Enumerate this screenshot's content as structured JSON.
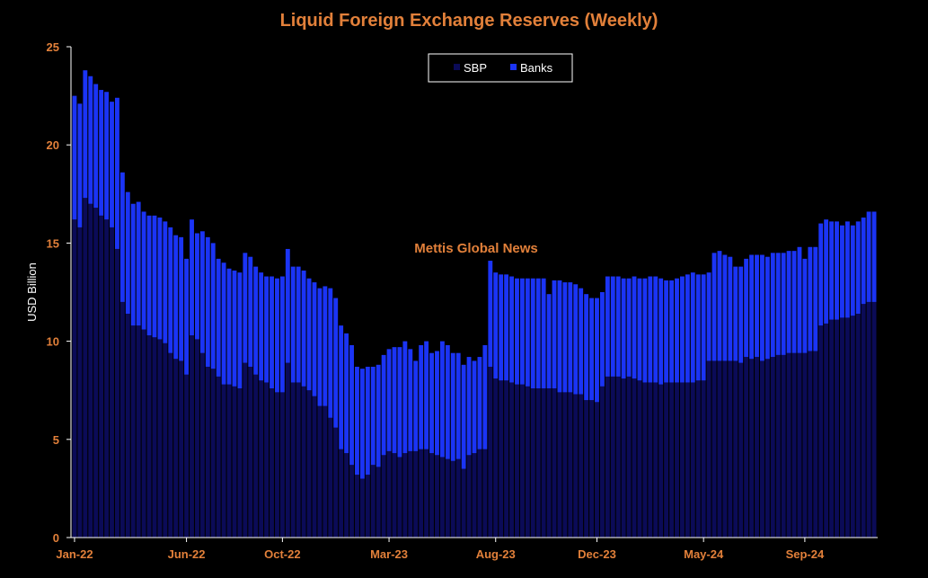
{
  "colors": {
    "background": "#000000",
    "title": "#E2803A",
    "tick_label": "#E2803A",
    "sbp": "#0B0B57",
    "banks": "#1B34F5",
    "axis_line": "#ffffff"
  },
  "watermark": {
    "text": "Mettis Global News"
  },
  "chart_data": {
    "type": "bar",
    "stacked": true,
    "title": "Liquid Foreign Exchange Reserves (Weekly)",
    "xlabel": "",
    "ylabel": "USD Billion",
    "ylim": [
      0,
      25
    ],
    "yticks": [
      0,
      5,
      10,
      15,
      20,
      25
    ],
    "grid": false,
    "legend_position": "top-center",
    "x_tick_labels": [
      "Jan-22",
      "Jun-22",
      "Oct-22",
      "Mar-23",
      "Aug-23",
      "Dec-23",
      "May-24",
      "Sep-24"
    ],
    "x_tick_indices": [
      0,
      21,
      39,
      59,
      79,
      98,
      118,
      137
    ],
    "series": [
      {
        "name": "SBP",
        "color": "#0B0B57",
        "values": [
          16.2,
          15.8,
          17.3,
          17.0,
          16.8,
          16.4,
          16.2,
          15.8,
          14.7,
          12.0,
          11.4,
          10.8,
          10.8,
          10.6,
          10.3,
          10.2,
          10.1,
          9.9,
          9.4,
          9.1,
          9.0,
          8.3,
          10.3,
          10.1,
          9.4,
          8.7,
          8.6,
          8.2,
          7.8,
          7.8,
          7.7,
          7.6,
          8.9,
          8.7,
          8.3,
          8.0,
          7.9,
          7.6,
          7.4,
          7.4,
          8.9,
          7.9,
          7.9,
          7.7,
          7.5,
          7.2,
          6.7,
          6.7,
          6.1,
          5.6,
          4.5,
          4.3,
          3.7,
          3.2,
          3.0,
          3.2,
          3.7,
          3.6,
          4.2,
          4.4,
          4.3,
          4.1,
          4.3,
          4.4,
          4.4,
          4.5,
          4.5,
          4.3,
          4.2,
          4.1,
          4.0,
          3.9,
          4.0,
          3.5,
          4.2,
          4.3,
          4.5,
          4.5,
          8.7,
          8.1,
          8.0,
          8.0,
          7.9,
          7.8,
          7.8,
          7.7,
          7.6,
          7.6,
          7.6,
          7.6,
          7.6,
          7.4,
          7.4,
          7.4,
          7.3,
          7.3,
          7.0,
          7.0,
          6.9,
          7.7,
          8.2,
          8.2,
          8.2,
          8.1,
          8.2,
          8.1,
          8.0,
          7.9,
          7.9,
          7.9,
          7.8,
          7.9,
          7.9,
          7.9,
          7.9,
          7.9,
          7.9,
          8.0,
          8.0,
          9.0,
          9.0,
          9.0,
          9.0,
          9.0,
          9.0,
          8.9,
          9.2,
          9.1,
          9.2,
          9.0,
          9.1,
          9.2,
          9.3,
          9.3,
          9.4,
          9.4,
          9.4,
          9.4,
          9.5,
          9.5,
          10.8,
          10.9,
          11.1,
          11.1,
          11.2,
          11.2,
          11.3,
          11.4,
          11.9,
          12.0,
          12.0
        ]
      },
      {
        "name": "Banks",
        "color": "#1B34F5",
        "values": [
          6.3,
          6.3,
          6.5,
          6.5,
          6.3,
          6.4,
          6.5,
          6.4,
          7.7,
          6.6,
          6.2,
          6.2,
          6.3,
          6.0,
          6.1,
          6.2,
          6.2,
          6.2,
          6.4,
          6.3,
          6.3,
          5.9,
          5.9,
          5.4,
          6.2,
          6.6,
          6.4,
          6.0,
          6.2,
          5.9,
          5.9,
          5.9,
          5.6,
          5.6,
          5.5,
          5.5,
          5.4,
          5.7,
          5.8,
          5.9,
          5.8,
          5.9,
          5.9,
          5.9,
          5.7,
          5.8,
          6.0,
          6.1,
          6.6,
          6.6,
          6.3,
          6.1,
          6.1,
          5.5,
          5.6,
          5.5,
          5.0,
          5.2,
          5.1,
          5.2,
          5.4,
          5.6,
          5.7,
          5.2,
          4.6,
          5.3,
          5.5,
          5.1,
          5.3,
          5.9,
          5.8,
          5.5,
          5.4,
          5.3,
          5.0,
          4.7,
          4.7,
          5.3,
          5.4,
          5.4,
          5.4,
          5.4,
          5.4,
          5.4,
          5.4,
          5.5,
          5.6,
          5.6,
          5.6,
          4.8,
          5.5,
          5.7,
          5.6,
          5.6,
          5.6,
          5.4,
          5.4,
          5.2,
          5.3,
          4.8,
          5.1,
          5.1,
          5.1,
          5.1,
          5.0,
          5.2,
          5.2,
          5.3,
          5.4,
          5.4,
          5.4,
          5.2,
          5.2,
          5.3,
          5.4,
          5.5,
          5.6,
          5.4,
          5.4,
          4.5,
          5.5,
          5.6,
          5.4,
          5.3,
          4.8,
          4.9,
          5.0,
          5.3,
          5.2,
          5.4,
          5.2,
          5.3,
          5.2,
          5.2,
          5.2,
          5.2,
          5.4,
          4.8,
          5.3,
          5.3,
          5.2,
          5.3,
          5.0,
          5.0,
          4.7,
          4.9,
          4.6,
          4.7,
          4.4,
          4.6,
          4.6,
          4.6,
          4.6
        ]
      }
    ]
  }
}
